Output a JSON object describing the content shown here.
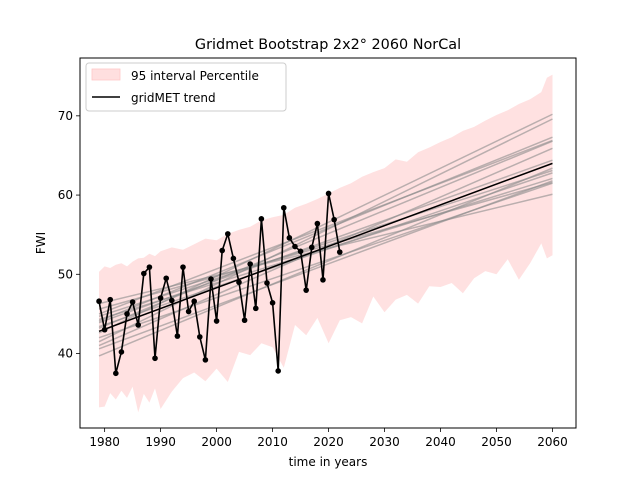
{
  "chart_data": {
    "type": "line",
    "title": "Gridmet Bootstrap 2x2° 2060 NorCal",
    "xlabel": "time in years",
    "ylabel": "FWI",
    "xlim": [
      1975.6,
      2064.2
    ],
    "ylim": [
      30.6,
      77.3
    ],
    "xticks": [
      1980,
      1990,
      2000,
      2010,
      2020,
      2030,
      2040,
      2050,
      2060
    ],
    "yticks": [
      40,
      50,
      60,
      70
    ],
    "grid": false,
    "legend_position": "upper-left",
    "legend": [
      {
        "label": "95 interval Percentile",
        "kind": "band",
        "color": "#ffdfdf"
      },
      {
        "label": "gridMET trend",
        "kind": "line",
        "color": "#000000"
      }
    ],
    "interval_band": {
      "name": "95 interval Percentile",
      "color": "#ffc8c8",
      "x": [
        1979,
        1980,
        1981,
        1982,
        1983,
        1984,
        1985,
        1986,
        1987,
        1988,
        1989,
        1990,
        1992,
        1994,
        1996,
        1998,
        2000,
        2002,
        2004,
        2006,
        2008,
        2010,
        2012,
        2014,
        2016,
        2018,
        2020,
        2022,
        2024,
        2026,
        2028,
        2030,
        2032,
        2034,
        2036,
        2038,
        2040,
        2042,
        2044,
        2046,
        2048,
        2050,
        2052,
        2054,
        2056,
        2058,
        2059,
        2060
      ],
      "upper": [
        50.3,
        51.0,
        50.8,
        51.2,
        51.4,
        51.0,
        51.6,
        52.0,
        52.1,
        52.6,
        52.3,
        52.9,
        53.4,
        53.1,
        53.8,
        54.5,
        54.3,
        55.1,
        55.6,
        56.0,
        56.8,
        57.2,
        57.5,
        58.4,
        58.9,
        59.5,
        60.2,
        60.9,
        61.5,
        62.3,
        62.9,
        63.4,
        64.5,
        64.2,
        65.4,
        66.0,
        66.7,
        67.3,
        68.1,
        68.6,
        69.4,
        70.1,
        70.7,
        71.5,
        72.1,
        73.0,
        74.8,
        75.2
      ],
      "lower": [
        33.2,
        33.3,
        35.0,
        34.2,
        35.3,
        34.4,
        35.8,
        32.6,
        34.9,
        33.8,
        35.6,
        33.0,
        35.2,
        36.9,
        37.6,
        36.5,
        38.1,
        36.4,
        40.2,
        39.8,
        41.3,
        40.8,
        38.2,
        43.6,
        42.3,
        44.5,
        41.3,
        44.2,
        44.6,
        43.8,
        47.2,
        45.2,
        46.8,
        47.4,
        46.3,
        48.5,
        48.4,
        48.9,
        47.6,
        49.5,
        50.4,
        50.0,
        51.9,
        49.3,
        51.4,
        53.9,
        52.0,
        52.4
      ]
    },
    "bootstrap_trends": {
      "name": "bootstrap trend",
      "color": "#8c8c8c",
      "x": [
        1979,
        2060
      ],
      "y": [
        [
          42.6,
          70.2
        ],
        [
          41.5,
          69.6
        ],
        [
          44.1,
          67.3
        ],
        [
          43.2,
          66.8
        ],
        [
          41.0,
          65.9
        ],
        [
          45.0,
          66.9
        ],
        [
          43.9,
          64.4
        ],
        [
          39.7,
          63.4
        ],
        [
          44.7,
          63.1
        ],
        [
          43.4,
          62.8
        ],
        [
          40.6,
          61.8
        ],
        [
          45.6,
          61.6
        ],
        [
          46.3,
          60.1
        ],
        [
          42.0,
          61.5
        ],
        [
          44.3,
          62.1
        ]
      ]
    },
    "gridmet_trend": {
      "name": "gridMET trend",
      "color": "#000000",
      "x": [
        1979,
        2060
      ],
      "y": [
        42.8,
        64.0
      ]
    },
    "observed": {
      "name": "observed FWI",
      "color": "#000000",
      "x": [
        1979,
        1980,
        1981,
        1982,
        1983,
        1984,
        1985,
        1986,
        1987,
        1988,
        1989,
        1990,
        1991,
        1992,
        1993,
        1994,
        1995,
        1996,
        1997,
        1998,
        1999,
        2000,
        2001,
        2002,
        2003,
        2004,
        2005,
        2006,
        2007,
        2008,
        2009,
        2010,
        2011,
        2012,
        2013,
        2014,
        2015,
        2016,
        2017,
        2018,
        2019,
        2020,
        2021,
        2022,
        2023
      ],
      "y": [
        46.6,
        43.0,
        46.8,
        37.5,
        40.2,
        45.0,
        46.5,
        43.6,
        50.1,
        50.9,
        39.4,
        47.0,
        49.5,
        46.7,
        42.2,
        50.9,
        45.3,
        46.6,
        42.1,
        39.2,
        49.4,
        44.1,
        53.0,
        55.1,
        52.0,
        49.0,
        44.2,
        51.3,
        45.7,
        57.0,
        48.9,
        46.4,
        37.8,
        58.4,
        54.6,
        53.5,
        52.9,
        48.0,
        53.4,
        56.4,
        49.3,
        60.2,
        56.9,
        52.8,
        null
      ]
    }
  }
}
